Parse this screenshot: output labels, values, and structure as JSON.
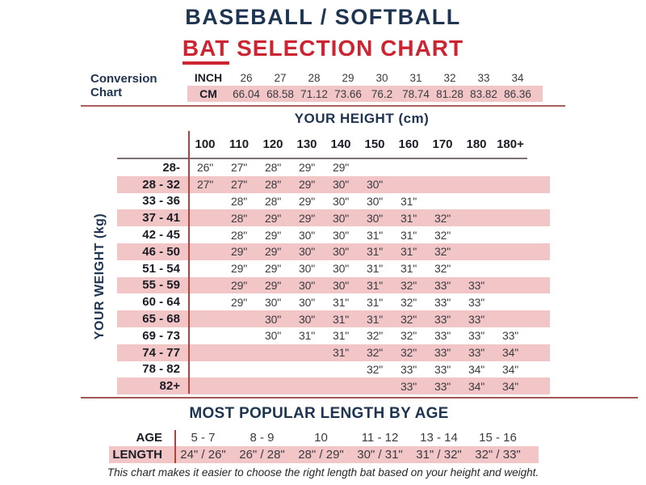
{
  "header": {
    "title_line1": "BASEBALL / SOFTBALL",
    "title_line2_underlined": "BAT",
    "title_line2_rest": " SELECTION CHART"
  },
  "colors": {
    "navy": "#1e3451",
    "red": "#cc2431",
    "pink_band": "#f2c5c6",
    "divider_maroon": "#a35757",
    "vertical_line_red": "#b4403c"
  },
  "conversion": {
    "label": "Conversion Chart",
    "inch_label": "INCH",
    "cm_label": "CM"
  },
  "height_table": {
    "title": "YOUR HEIGHT (cm)",
    "y_axis_label": "YOUR WEIGHT (kg)"
  },
  "age_table": {
    "title": "MOST POPULAR LENGTH BY AGE",
    "age_label": "AGE",
    "length_label": "LENGTH"
  },
  "footer": {
    "note": "This chart makes it easier to choose the right length bat based on your height and weight."
  },
  "chart_data": [
    {
      "type": "table",
      "title": "Conversion Chart (inches to cm)",
      "inches": [
        "26",
        "27",
        "28",
        "29",
        "30",
        "31",
        "32",
        "33",
        "34"
      ],
      "cm": [
        "66.04",
        "68.58",
        "71.12",
        "73.66",
        "76.2",
        "78.74",
        "81.28",
        "83.82",
        "86.36"
      ]
    },
    {
      "type": "table",
      "title": "Bat length by height and weight",
      "xlabel": "YOUR HEIGHT (cm)",
      "ylabel": "YOUR WEIGHT (kg)",
      "height_columns": [
        "100",
        "110",
        "120",
        "130",
        "140",
        "150",
        "160",
        "170",
        "180",
        "180+"
      ],
      "weight_rows": [
        "28-",
        "28 - 32",
        "33 - 36",
        "37 - 41",
        "42 - 45",
        "46 - 50",
        "51 - 54",
        "55 - 59",
        "60 - 64",
        "65 - 68",
        "69 - 73",
        "74 - 77",
        "78 - 82",
        "82+"
      ],
      "matrix": [
        [
          "26\"",
          "27\"",
          "28\"",
          "29\"",
          "29\"",
          "",
          "",
          "",
          "",
          ""
        ],
        [
          "27\"",
          "27\"",
          "28\"",
          "29\"",
          "30\"",
          "30\"",
          "",
          "",
          "",
          ""
        ],
        [
          "",
          "28\"",
          "28\"",
          "29\"",
          "30\"",
          "30\"",
          "31\"",
          "",
          "",
          ""
        ],
        [
          "",
          "28\"",
          "29\"",
          "29\"",
          "30\"",
          "30\"",
          "31\"",
          "32\"",
          "",
          ""
        ],
        [
          "",
          "28\"",
          "29\"",
          "30\"",
          "30\"",
          "31\"",
          "31\"",
          "32\"",
          "",
          ""
        ],
        [
          "",
          "29\"",
          "29\"",
          "30\"",
          "30\"",
          "31\"",
          "31\"",
          "32\"",
          "",
          ""
        ],
        [
          "",
          "29\"",
          "29\"",
          "30\"",
          "30\"",
          "31\"",
          "31\"",
          "32\"",
          "",
          ""
        ],
        [
          "",
          "29\"",
          "29\"",
          "30\"",
          "30\"",
          "31\"",
          "32\"",
          "33\"",
          "33\"",
          ""
        ],
        [
          "",
          "29\"",
          "30\"",
          "30\"",
          "31\"",
          "31\"",
          "32\"",
          "33\"",
          "33\"",
          ""
        ],
        [
          "",
          "",
          "30\"",
          "30\"",
          "31\"",
          "31\"",
          "32\"",
          "33\"",
          "33\"",
          ""
        ],
        [
          "",
          "",
          "30\"",
          "31\"",
          "31\"",
          "32\"",
          "32\"",
          "33\"",
          "33\"",
          "33\""
        ],
        [
          "",
          "",
          "",
          "",
          "31\"",
          "32\"",
          "32\"",
          "33\"",
          "33\"",
          "34\""
        ],
        [
          "",
          "",
          "",
          "",
          "",
          "32\"",
          "33\"",
          "33\"",
          "34\"",
          "34\""
        ],
        [
          "",
          "",
          "",
          "",
          "",
          "",
          "33\"",
          "33\"",
          "34\"",
          "34\""
        ]
      ]
    },
    {
      "type": "table",
      "title": "MOST POPULAR LENGTH BY AGE",
      "ages": [
        "5 - 7",
        "8 - 9",
        "10",
        "11 - 12",
        "13 - 14",
        "15 - 16"
      ],
      "lengths": [
        "24\" / 26\"",
        "26\" / 28\"",
        "28\" / 29\"",
        "30\" / 31\"",
        "31\" / 32\"",
        "32\" / 33\""
      ]
    }
  ]
}
